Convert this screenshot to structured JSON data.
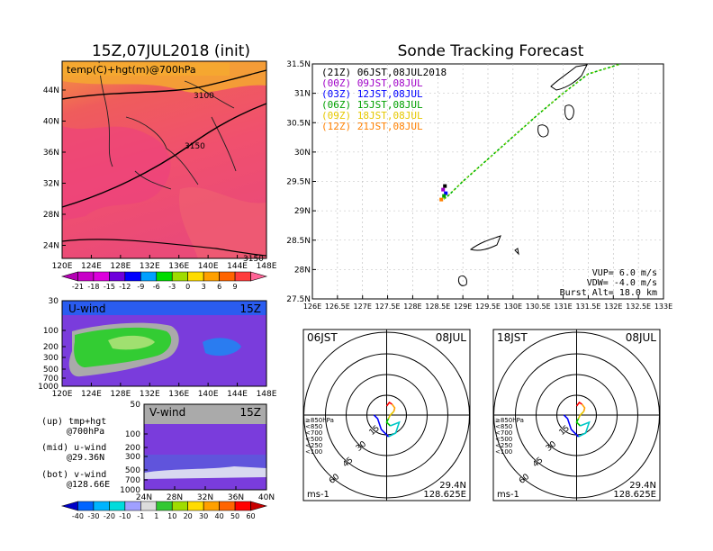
{
  "left_title": "15Z,07JUL2018 (init)",
  "main_title": "Sonde Tracking Forecast",
  "map_panel": {
    "label": "temp(C)+hgt(m)@700hPa",
    "contours": [
      "3100",
      "3150",
      "3150"
    ],
    "lat_ticks": [
      "44N",
      "40N",
      "36N",
      "32N",
      "28N",
      "24N"
    ],
    "lon_ticks": [
      "120E",
      "124E",
      "128E",
      "132E",
      "136E",
      "140E",
      "144E",
      "148E"
    ]
  },
  "temp_colorbar": {
    "labels": [
      "-21",
      "-18",
      "-15",
      "-12",
      "-9",
      "-6",
      "-3",
      "0",
      "3",
      "6",
      "9"
    ],
    "colors": [
      "#b400b4",
      "#c800c8",
      "#dc00dc",
      "#6e00dc",
      "#0000ff",
      "#00a0ff",
      "#00dc00",
      "#a0dc00",
      "#ffdc00",
      "#ffa000",
      "#ff6400",
      "#ff3c3c",
      "#ff6496"
    ]
  },
  "u_wind": {
    "label": "U-wind",
    "time": "15Z",
    "p_ticks": [
      "30",
      "100",
      "200",
      "300",
      "500",
      "700",
      "1000"
    ],
    "lon_ticks": [
      "120E",
      "124E",
      "128E",
      "132E",
      "136E",
      "140E",
      "144E",
      "148E"
    ]
  },
  "v_wind": {
    "label": "V-wind",
    "time": "15Z",
    "p_ticks": [
      "50",
      "100",
      "200",
      "300",
      "500",
      "700",
      "1000"
    ],
    "lat_ticks": [
      "24N",
      "28N",
      "32N",
      "36N",
      "40N"
    ]
  },
  "notes": [
    "(up) tmp+hgt",
    "@700hPa",
    "(mid) u-wind",
    "@29.36N",
    "(bot) v-wind",
    "@128.66E"
  ],
  "wind_colorbar": {
    "labels": [
      "-40",
      "-30",
      "-20",
      "-10",
      "-1",
      "1",
      "10",
      "20",
      "30",
      "40",
      "50",
      "60"
    ],
    "colors": [
      "#0000c8",
      "#0064ff",
      "#00b4ff",
      "#00dcdc",
      "#a0a0ff",
      "#dcdcdc",
      "#32c832",
      "#a0dc00",
      "#ffdc00",
      "#ffa000",
      "#ff6400",
      "#ff0000",
      "#c80000"
    ]
  },
  "track_panel": {
    "legend": [
      {
        "text": "(21Z) 06JST,08JUL2018",
        "color": "#000000"
      },
      {
        "text": "(00Z) 09JST,08JUL",
        "color": "#a000c8"
      },
      {
        "text": "(03Z) 12JST,08JUL",
        "color": "#0000ff"
      },
      {
        "text": "(06Z) 15JST,08JUL",
        "color": "#00a000"
      },
      {
        "text": "(09Z) 18JST,08JUL",
        "color": "#e6c800"
      },
      {
        "text": "(12Z) 21JST,08JUL",
        "color": "#ff8000"
      }
    ],
    "lat_ticks": [
      "31.5N",
      "31N",
      "30.5N",
      "30N",
      "29.5N",
      "29N",
      "28.5N",
      "28N",
      "27.5N"
    ],
    "lon_ticks": [
      "126E",
      "126.5E",
      "127E",
      "127.5E",
      "128E",
      "128.5E",
      "129E",
      "129.5E",
      "130E",
      "130.5E",
      "131E",
      "131.5E",
      "132E",
      "132.5E",
      "133E"
    ],
    "vup": "VUP= 6.0 m/s",
    "vdw": "VDW= -4.0 m/s",
    "burst": "Burst Alt= 18.0 km"
  },
  "hodographs": [
    {
      "time": "06JST",
      "date": "08JUL",
      "lat": "29.4N",
      "lon": "128.625E",
      "unit": "ms-1",
      "rings": [
        "15",
        "30",
        "45",
        "60"
      ]
    },
    {
      "time": "18JST",
      "date": "08JUL",
      "lat": "29.4N",
      "lon": "128.625E",
      "unit": "ms-1",
      "rings": [
        "15",
        "30",
        "45",
        "60"
      ]
    }
  ],
  "hodo_legend": [
    {
      "text": "≥850hPa",
      "color": "#ff0000"
    },
    {
      "text": "<850",
      "color": "#ffa000"
    },
    {
      "text": "<700",
      "color": "#e6c800"
    },
    {
      "text": "<500",
      "color": "#00c800"
    },
    {
      "text": "<250",
      "color": "#00c8c8"
    },
    {
      "text": "<100",
      "color": "#0000ff"
    }
  ],
  "chart_data": {
    "type": "line",
    "title": "Sonde Tracking Forecast",
    "ascent_rate": 6.0,
    "descent_rate": -4.0,
    "burst_altitude_km": 18.0,
    "launch_point": {
      "lat": 29.36,
      "lon": 128.66
    },
    "xlim": [
      126,
      133
    ],
    "ylim": [
      27.5,
      31.5
    ],
    "series": [
      {
        "name": "track",
        "lon": [
          128.62,
          128.7,
          129.0,
          129.5,
          130.0,
          130.5,
          131.0,
          131.5,
          132.15
        ],
        "lat": [
          29.2,
          29.25,
          29.5,
          29.88,
          30.26,
          30.64,
          31.0,
          31.33,
          31.6
        ]
      }
    ]
  }
}
